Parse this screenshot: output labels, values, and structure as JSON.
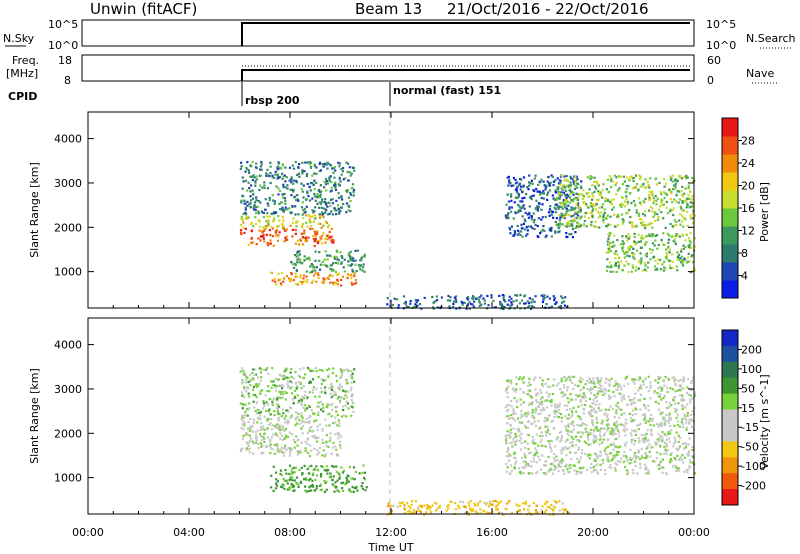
{
  "header": {
    "station": "Unwin (fitACF)",
    "beam": "Beam 13",
    "date_range": "21/Oct/2016 - 22/Oct/2016"
  },
  "status_panels": {
    "nsky_label": "N.Sky",
    "nsearch_label": "N.Search",
    "n_ticks": [
      "10^5",
      "10^0"
    ],
    "freq_label_line1": "Freq.",
    "freq_label_line2": "[MHz]",
    "freq_ticks": [
      "18",
      "8"
    ],
    "nave_label": "Nave",
    "nave_ticks": [
      "60",
      "0"
    ],
    "cpid_label": "CPID",
    "cpid_modes": [
      {
        "start_hour": 6.0,
        "label": "rbsp 200"
      },
      {
        "start_hour": 12.0,
        "label": "normal (fast) 151"
      }
    ]
  },
  "chart_data": [
    {
      "type": "heatmap",
      "name": "power",
      "ylabel": "Slant Range [km]",
      "yticks": [
        1000,
        2000,
        3000,
        4000
      ],
      "ylim": [
        180,
        4600
      ],
      "xlim": [
        0,
        24
      ],
      "colorbar": {
        "label": "Power [dB]",
        "ticks": [
          "4",
          "8",
          "12",
          "16",
          "20",
          "24",
          "28"
        ],
        "colors": [
          "#0a1ee6",
          "#1e46b4",
          "#2d7a6e",
          "#3c9a5a",
          "#6cc83c",
          "#c8dc32",
          "#f0c814",
          "#f08c0a",
          "#f05014",
          "#e81818"
        ]
      },
      "regions": [
        {
          "t0": 6.0,
          "t1": 9.7,
          "r0": 1600,
          "r1": 2000,
          "db": 26
        },
        {
          "t0": 6.0,
          "t1": 9.5,
          "r0": 2000,
          "r1": 2300,
          "db": 19
        },
        {
          "t0": 7.2,
          "t1": 10.8,
          "r0": 700,
          "r1": 1000,
          "db": 23
        },
        {
          "t0": 8.0,
          "t1": 11.0,
          "r0": 1000,
          "r1": 1500,
          "db": 11
        },
        {
          "t0": 6.0,
          "t1": 10.5,
          "r0": 2300,
          "r1": 3500,
          "db": 9
        },
        {
          "t0": 11.8,
          "t1": 19.0,
          "r0": 180,
          "r1": 500,
          "db": 7
        },
        {
          "t0": 16.5,
          "t1": 19.5,
          "r0": 1800,
          "r1": 3200,
          "db": 6
        },
        {
          "t0": 20.5,
          "t1": 24.0,
          "r0": 1000,
          "r1": 1900,
          "db": 14
        },
        {
          "t0": 18.5,
          "t1": 24.0,
          "r0": 2000,
          "r1": 3200,
          "db": 15
        }
      ]
    },
    {
      "type": "heatmap",
      "name": "velocity",
      "ylabel": "Slant Range [km]",
      "yticks": [
        1000,
        2000,
        3000,
        4000
      ],
      "ylim": [
        180,
        4600
      ],
      "xlim": [
        0,
        24
      ],
      "xticks": [
        "00:00",
        "04:00",
        "08:00",
        "12:00",
        "16:00",
        "20:00",
        "00:00"
      ],
      "xlabel": "Time UT",
      "colorbar": {
        "label": "Velocity [m s^-1]",
        "ticks": [
          "200",
          "100",
          "50",
          "15",
          "-15",
          "-50",
          "-100",
          "-200"
        ],
        "colors": [
          "#1428c8",
          "#1e50a0",
          "#2d7850",
          "#3c9632",
          "#78d23c",
          "#c8c8c8",
          "#c8c8c8",
          "#f0c814",
          "#f0960a",
          "#f05a0a",
          "#e81818"
        ]
      },
      "regions": [
        {
          "t0": 6.0,
          "t1": 10.0,
          "r0": 1500,
          "r1": 2400,
          "v": 0
        },
        {
          "t0": 7.2,
          "t1": 11.0,
          "r0": 700,
          "r1": 1300,
          "v": 30
        },
        {
          "t0": 6.0,
          "t1": 10.5,
          "r0": 2400,
          "r1": 3500,
          "v": 10
        },
        {
          "t0": 11.8,
          "t1": 19.0,
          "r0": 180,
          "r1": 500,
          "v": -40
        },
        {
          "t0": 16.5,
          "t1": 24.0,
          "r0": 1100,
          "r1": 3300,
          "v": 0
        }
      ]
    }
  ]
}
